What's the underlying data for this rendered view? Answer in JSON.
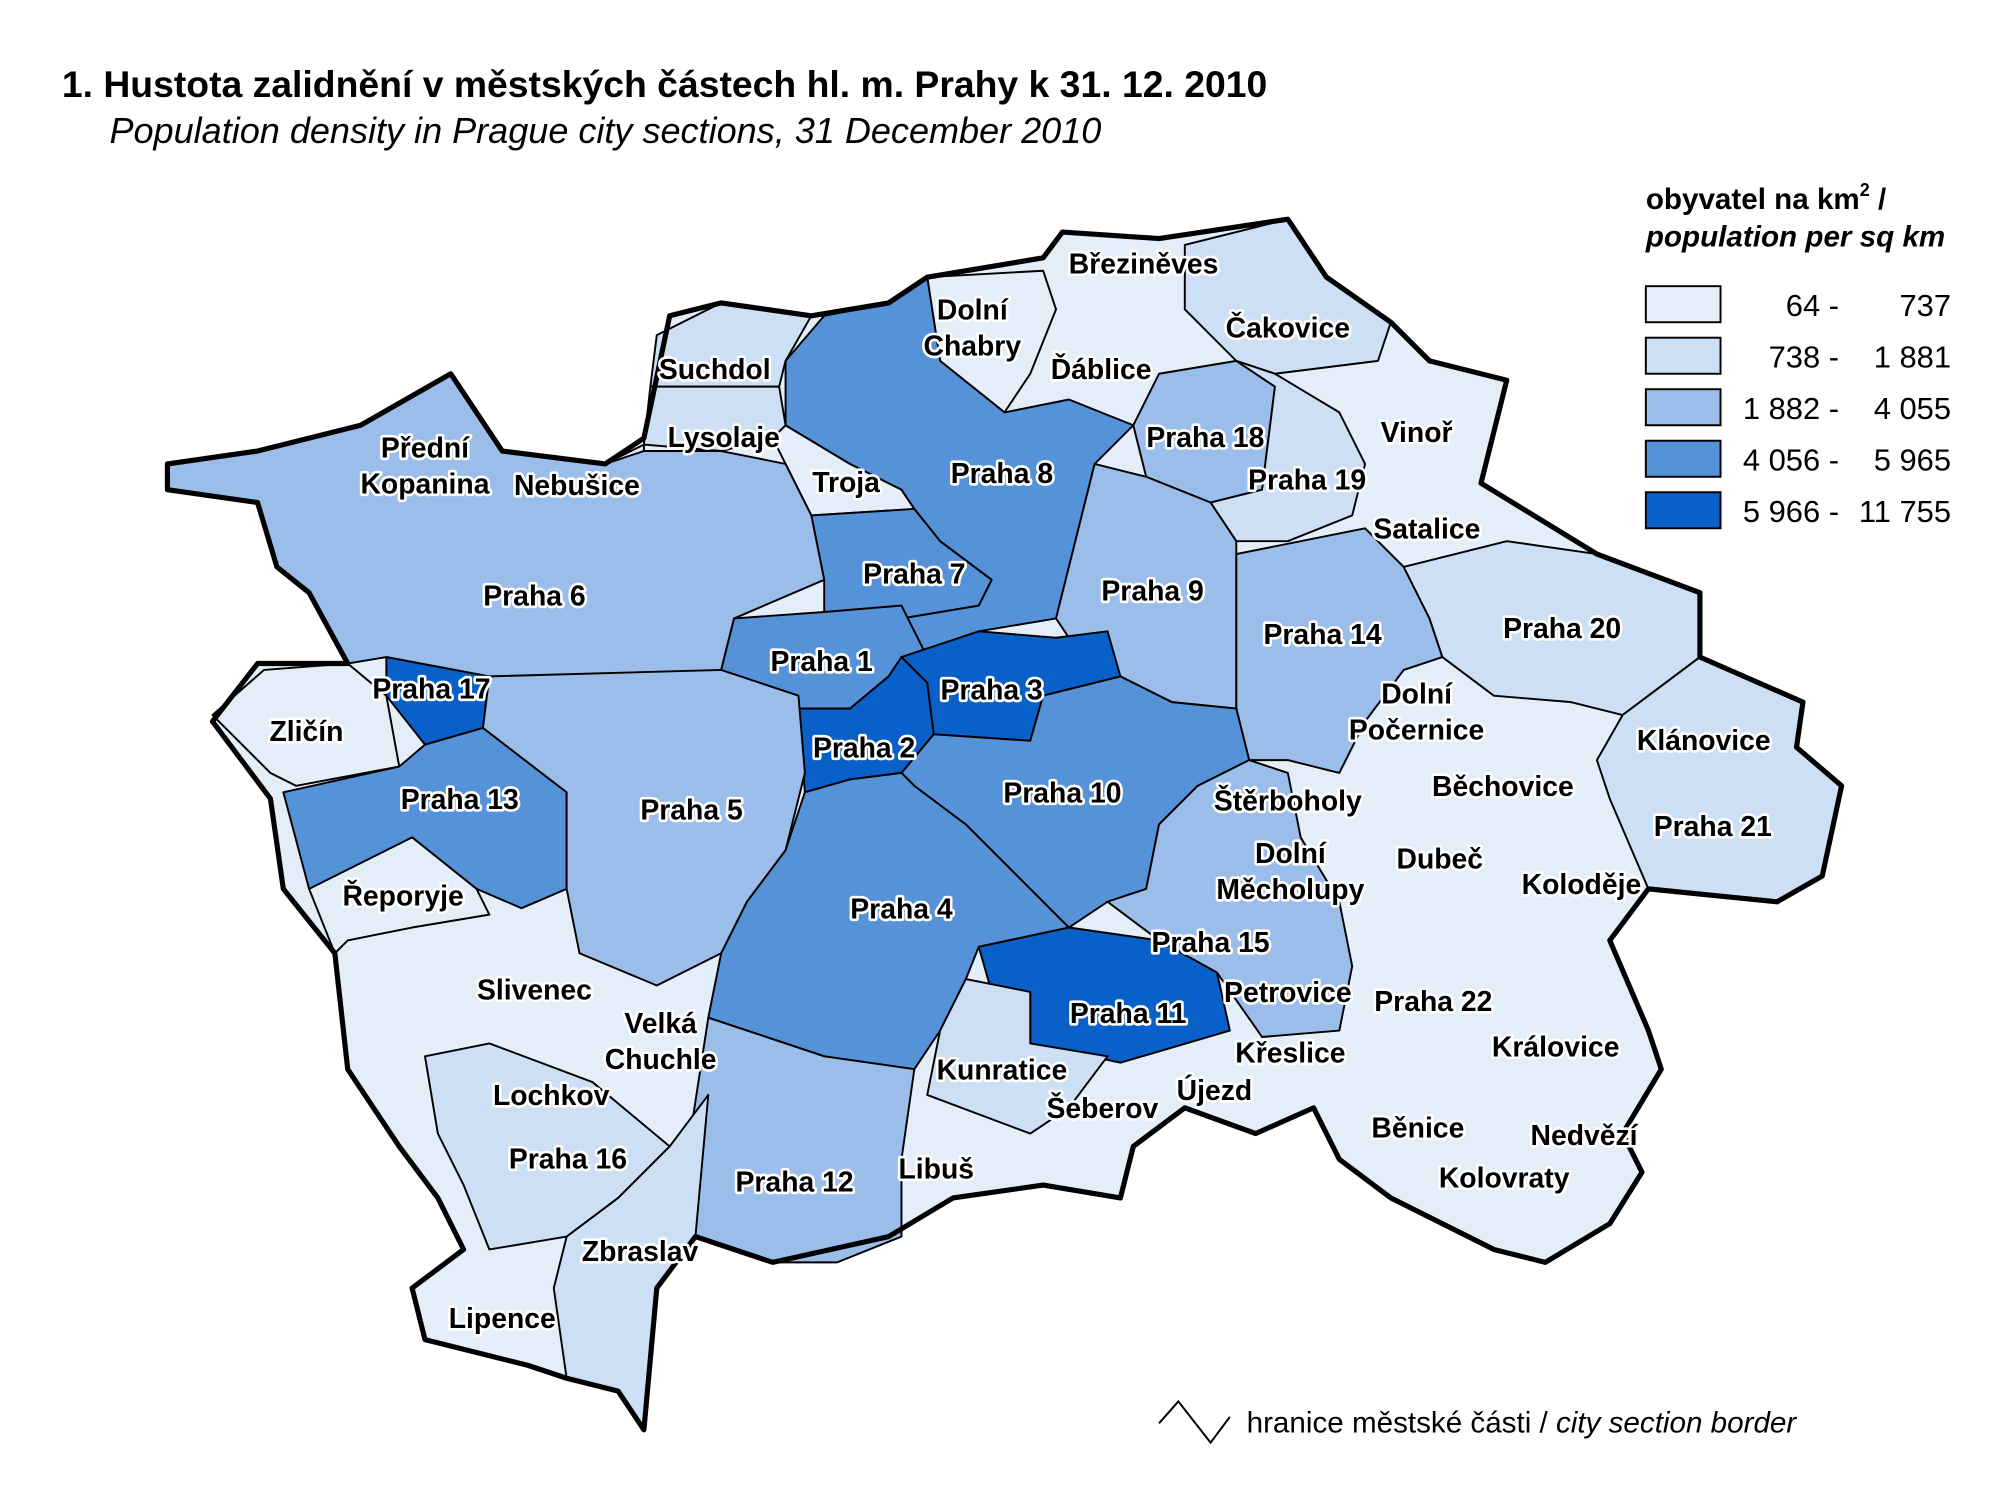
{
  "title": "1. Hustota zalidnění v městských částech hl. m. Prahy k 31. 12. 2010",
  "subtitle": "Population density in Prague city sections, 31 December 2010",
  "legend": {
    "title": "obyvatel na km",
    "title_sup": "2",
    "title_suffix": " /",
    "subtitle": "population per sq km",
    "classes": [
      {
        "from": "64 -",
        "to": "737",
        "color": "#e4eef9"
      },
      {
        "from": "738 -",
        "to": "1 881",
        "color": "#cddff4"
      },
      {
        "from": "1 882 -",
        "to": "4 055",
        "color": "#9bbde9"
      },
      {
        "from": "4 056 -",
        "to": "5 965",
        "color": "#5592d8"
      },
      {
        "from": "5 966 -",
        "to": "11 755",
        "color": "#0860c8"
      }
    ]
  },
  "border_legend": {
    "cz": "hranice městské části / ",
    "en": "city section border"
  },
  "districts": [
    {
      "name": "Březiněves",
      "class": 1,
      "lines": [
        "Březiněves"
      ]
    },
    {
      "name": "Dolní Chabry",
      "class": 1,
      "lines": [
        "Dolní",
        "Chabry"
      ]
    },
    {
      "name": "Čakovice",
      "class": 2,
      "lines": [
        "Čakovice"
      ]
    },
    {
      "name": "Suchdol",
      "class": 2,
      "lines": [
        "Suchdol"
      ]
    },
    {
      "name": "Ďáblice",
      "class": 1,
      "lines": [
        "Ďáblice"
      ]
    },
    {
      "name": "Lysolaje",
      "class": 2,
      "lines": [
        "Lysolaje"
      ]
    },
    {
      "name": "Praha 18",
      "class": 3,
      "lines": [
        "Praha 18"
      ]
    },
    {
      "name": "Vinoř",
      "class": 1,
      "lines": [
        "Vinoř"
      ]
    },
    {
      "name": "Přední Kopanina",
      "class": 1,
      "lines": [
        "Přední",
        "Kopanina"
      ]
    },
    {
      "name": "Nebušice",
      "class": 1,
      "lines": [
        "Nebušice"
      ]
    },
    {
      "name": "Troja",
      "class": 1,
      "lines": [
        "Troja"
      ]
    },
    {
      "name": "Praha 8",
      "class": 4,
      "lines": [
        "Praha 8"
      ]
    },
    {
      "name": "Praha 19",
      "class": 2,
      "lines": [
        "Praha 19"
      ]
    },
    {
      "name": "Satalice",
      "class": 1,
      "lines": [
        "Satalice"
      ]
    },
    {
      "name": "Praha 7",
      "class": 4,
      "lines": [
        "Praha 7"
      ]
    },
    {
      "name": "Praha 6",
      "class": 3,
      "lines": [
        "Praha 6"
      ]
    },
    {
      "name": "Praha 9",
      "class": 3,
      "lines": [
        "Praha 9"
      ]
    },
    {
      "name": "Praha 14",
      "class": 3,
      "lines": [
        "Praha 14"
      ]
    },
    {
      "name": "Praha 20",
      "class": 2,
      "lines": [
        "Praha 20"
      ]
    },
    {
      "name": "Praha 1",
      "class": 4,
      "lines": [
        "Praha 1"
      ]
    },
    {
      "name": "Praha 17",
      "class": 5,
      "lines": [
        "Praha 17"
      ]
    },
    {
      "name": "Praha 3",
      "class": 5,
      "lines": [
        "Praha 3"
      ]
    },
    {
      "name": "Dolní Počernice",
      "class": 1,
      "lines": [
        "Dolní",
        "Počernice"
      ]
    },
    {
      "name": "Zličín",
      "class": 1,
      "lines": [
        "Zličín"
      ]
    },
    {
      "name": "Klánovice",
      "class": 1,
      "lines": [
        "Klánovice"
      ]
    },
    {
      "name": "Praha 2",
      "class": 5,
      "lines": [
        "Praha 2"
      ]
    },
    {
      "name": "Běchovice",
      "class": 1,
      "lines": [
        "Běchovice"
      ]
    },
    {
      "name": "Štěrboholy",
      "class": 1,
      "lines": [
        "Štěrboholy"
      ]
    },
    {
      "name": "Praha 10",
      "class": 4,
      "lines": [
        "Praha 10"
      ]
    },
    {
      "name": "Praha 13",
      "class": 4,
      "lines": [
        "Praha 13"
      ]
    },
    {
      "name": "Praha 5",
      "class": 3,
      "lines": [
        "Praha 5"
      ]
    },
    {
      "name": "Praha 21",
      "class": 2,
      "lines": [
        "Praha 21"
      ]
    },
    {
      "name": "Dolní Měcholupy",
      "class": 1,
      "lines": [
        "Dolní",
        "Měcholupy"
      ]
    },
    {
      "name": "Dubeč",
      "class": 1,
      "lines": [
        "Dubeč"
      ]
    },
    {
      "name": "Koloděje",
      "class": 1,
      "lines": [
        "Koloděje"
      ]
    },
    {
      "name": "Řeporyje",
      "class": 1,
      "lines": [
        "Řeporyje"
      ]
    },
    {
      "name": "Praha 4",
      "class": 4,
      "lines": [
        "Praha 4"
      ]
    },
    {
      "name": "Praha 15",
      "class": 3,
      "lines": [
        "Praha 15"
      ]
    },
    {
      "name": "Slivenec",
      "class": 1,
      "lines": [
        "Slivenec"
      ]
    },
    {
      "name": "Petrovice",
      "class": 3,
      "lines": [
        "Petrovice"
      ]
    },
    {
      "name": "Praha 22",
      "class": 1,
      "lines": [
        "Praha 22"
      ]
    },
    {
      "name": "Velká Chuchle",
      "class": 1,
      "lines": [
        "Velká",
        "Chuchle"
      ]
    },
    {
      "name": "Praha 11",
      "class": 5,
      "lines": [
        "Praha 11"
      ]
    },
    {
      "name": "Královice",
      "class": 1,
      "lines": [
        "Královice"
      ]
    },
    {
      "name": "Křeslice",
      "class": 1,
      "lines": [
        "Křeslice"
      ]
    },
    {
      "name": "Kunratice",
      "class": 2,
      "lines": [
        "Kunratice"
      ]
    },
    {
      "name": "Lochkov",
      "class": 2,
      "lines": [
        "Lochkov"
      ]
    },
    {
      "name": "Újezd",
      "class": 1,
      "lines": [
        "Újezd"
      ]
    },
    {
      "name": "Šeberov",
      "class": 1,
      "lines": [
        "Šeberov"
      ]
    },
    {
      "name": "Běnice",
      "class": 1,
      "lines": [
        "Běnice"
      ]
    },
    {
      "name": "Nedvězí",
      "class": 1,
      "lines": [
        "Nedvězí"
      ]
    },
    {
      "name": "Praha 16",
      "class": 2,
      "lines": [
        "Praha 16"
      ]
    },
    {
      "name": "Libuš",
      "class": 2,
      "lines": [
        "Libuš"
      ]
    },
    {
      "name": "Kolovraty",
      "class": 1,
      "lines": [
        "Kolovraty"
      ]
    },
    {
      "name": "Praha 12",
      "class": 3,
      "lines": [
        "Praha 12"
      ]
    },
    {
      "name": "Zbraslav",
      "class": 2,
      "lines": [
        "Zbraslav"
      ]
    },
    {
      "name": "Lipence",
      "class": 1,
      "lines": [
        "Lipence"
      ]
    }
  ]
}
